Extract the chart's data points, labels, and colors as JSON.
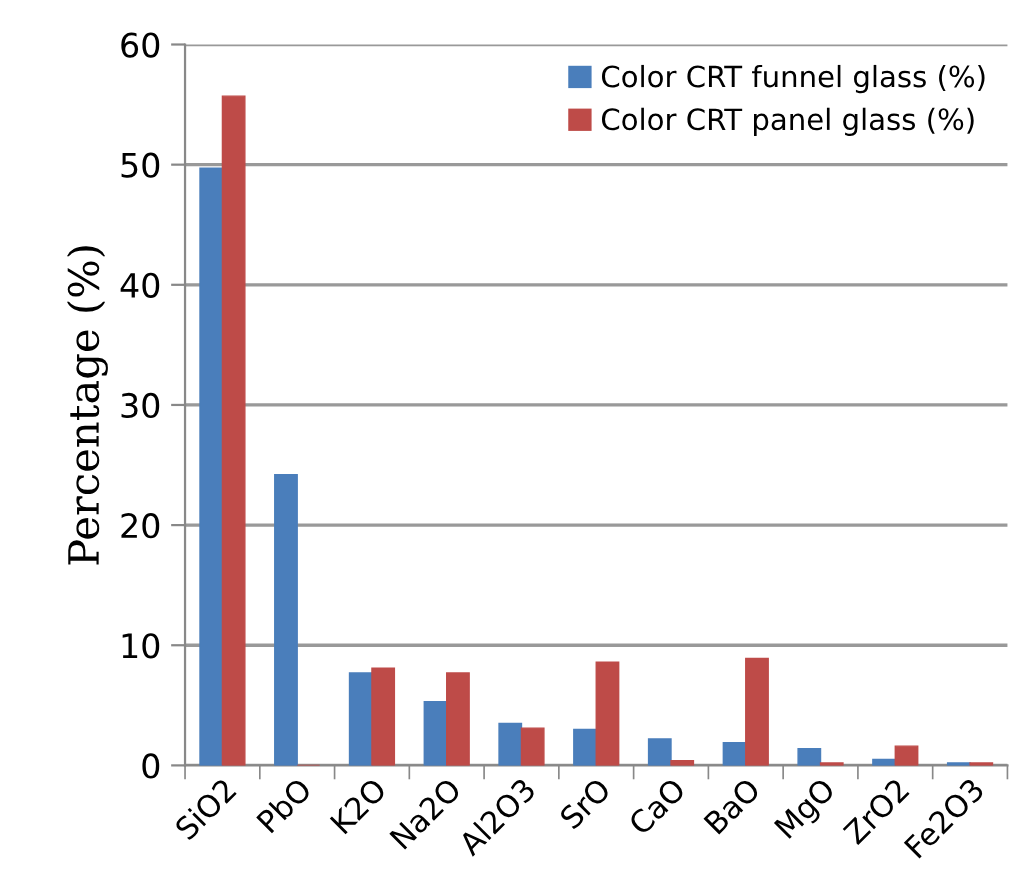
{
  "chart_data": {
    "type": "bar",
    "ylabel": "Percentage (%)",
    "categories": [
      "SiO2",
      "PbO",
      "K2O",
      "Na2O",
      "Al2O3",
      "SrO",
      "CaO",
      "BaO",
      "MgO",
      "ZrO2",
      "Fe2O3"
    ],
    "series": [
      {
        "name": "Color CRT funnel glass (%)",
        "color": "#4a7ebb",
        "values": [
          49.7,
          24.2,
          7.7,
          5.3,
          3.5,
          3.0,
          2.2,
          1.9,
          1.4,
          0.5,
          0.2
        ]
      },
      {
        "name": "Color CRT panel glass (%)",
        "color": "#be4b48",
        "values": [
          55.7,
          0,
          8.1,
          7.7,
          3.1,
          8.6,
          0.4,
          8.9,
          0.2,
          1.6,
          0.2
        ]
      }
    ],
    "ylim": [
      0,
      60
    ],
    "yticks": [
      0,
      10,
      20,
      30,
      40,
      50,
      60
    ],
    "grid": "y",
    "legend": "top right"
  }
}
